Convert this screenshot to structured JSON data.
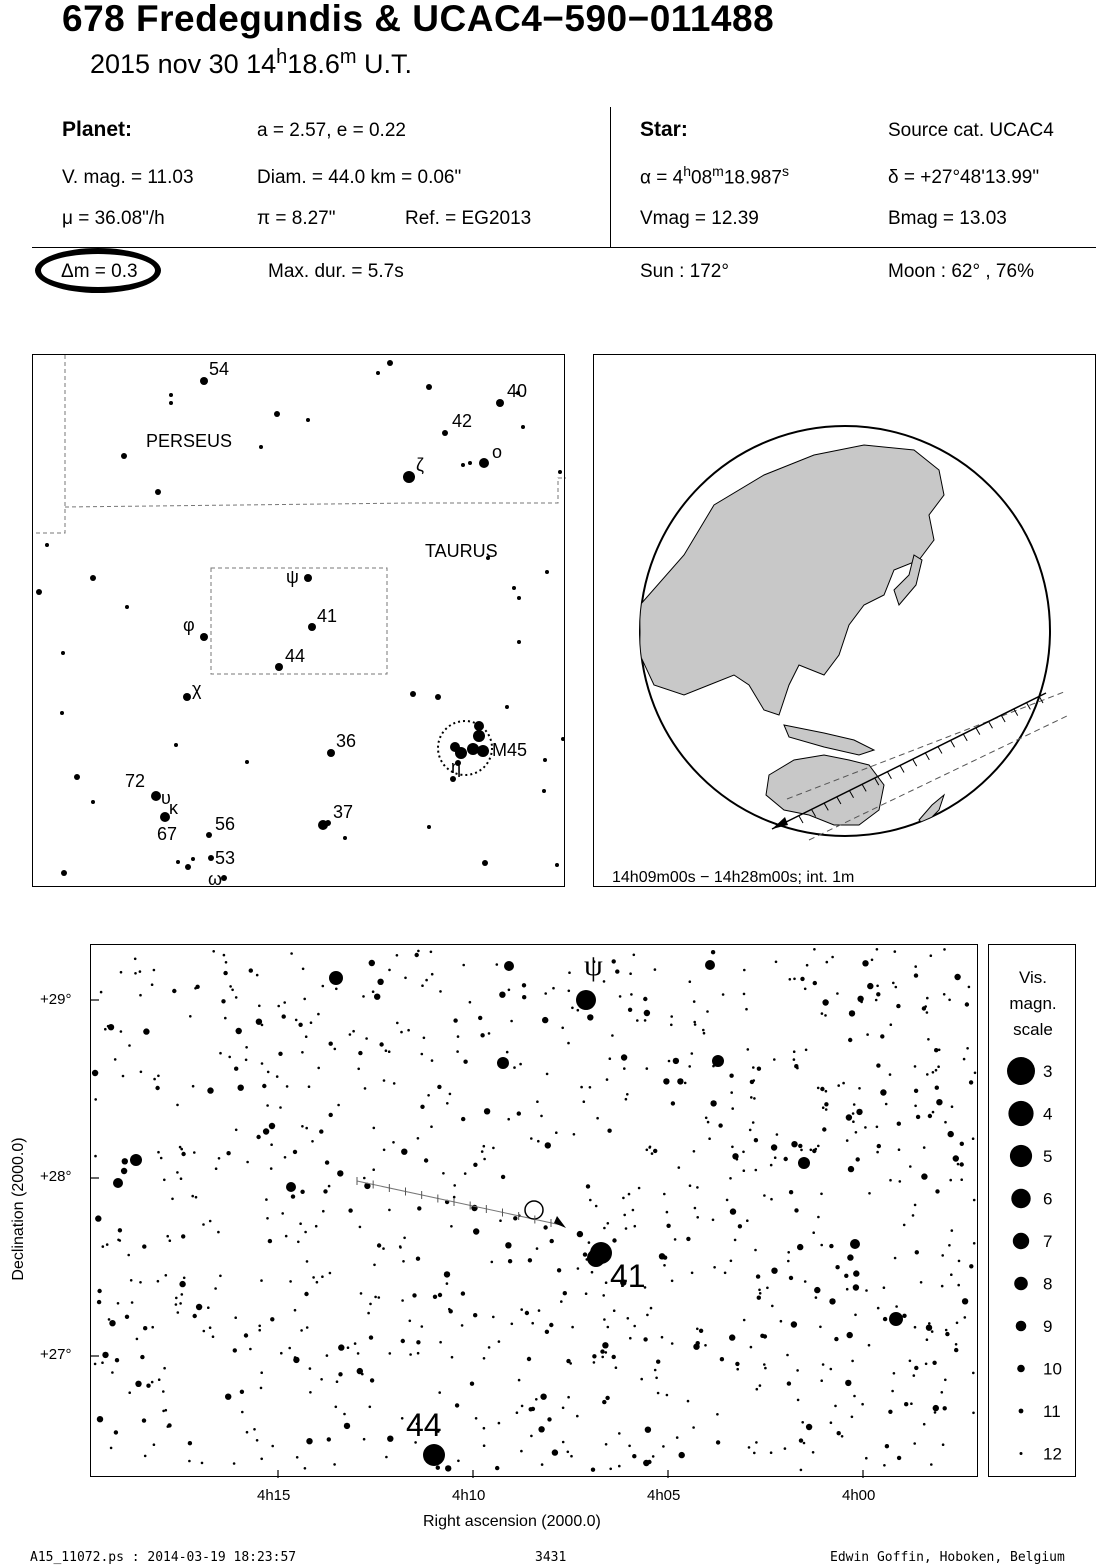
{
  "header": {
    "title": "678 Fredegundis  &  UCAC4−590−011488",
    "date": "2015 nov 30  14",
    "date_h": "h",
    "date_min": "18.6",
    "date_m": "m",
    "date_tz": " U.T."
  },
  "planet": {
    "heading": "Planet:",
    "orbit": "a = 2.57, e = 0.22",
    "vmag": "V. mag. = 11.03",
    "diam": "Diam. = 44.0 km = 0.06\"",
    "mu": "μ =  36.08\"/h",
    "pi": "π =  8.27\"",
    "ref": "Ref. = EG2013",
    "dm": "Δm = 0.3",
    "maxdur": "Max. dur. = 5.7s"
  },
  "star": {
    "heading": "Star:",
    "source": "Source cat.  UCAC4",
    "alpha_pre": "α =  4",
    "alpha_h": "h",
    "alpha_mid": "08",
    "alpha_m": "m",
    "alpha_sec": "18.987",
    "alpha_s": "s",
    "delta": "δ = +27°48'13.99\"",
    "vmag": "Vmag = 12.39",
    "bmag": "Bmag = 13.03",
    "sun": "Sun : 172°",
    "moon": "Moon :  62° , 76%"
  },
  "finder": {
    "const_labels": [
      "PERSEUS",
      "TAURUS"
    ],
    "star_labels": [
      "54",
      "40",
      "42",
      "o",
      "ζ",
      "ψ",
      "41",
      "44",
      "φ",
      "χ",
      "36",
      "M45",
      "η",
      "72",
      "υ",
      "κ",
      "67",
      "56",
      "37",
      "53",
      "ω"
    ]
  },
  "globe": {
    "caption": "14h09m00s − 14h28m00s; int.  1m",
    "colors": {
      "land": "#c8c8c8",
      "sea": "#ffffff"
    }
  },
  "chart": {
    "xlabel": "Right ascension (2000.0)",
    "ylabel": "Declination (2000.0)",
    "ra_ticks": [
      "4h15",
      "4h10",
      "4h05",
      "4h00"
    ],
    "dec_ticks": [
      "+29°",
      "+28°",
      "+27°"
    ],
    "labels": [
      "ψ",
      "41",
      "44"
    ]
  },
  "legend": {
    "title_lines": [
      "Vis.",
      "magn.",
      "scale"
    ],
    "mags": [
      "3",
      "4",
      "5",
      "6",
      "7",
      "8",
      "9",
      "10",
      "11",
      "12"
    ]
  },
  "footer": {
    "left": "A15_11072.ps : 2014-03-19 18:23:57",
    "center": "3431",
    "right": "Edwin Goffin, Hoboken, Belgium"
  }
}
